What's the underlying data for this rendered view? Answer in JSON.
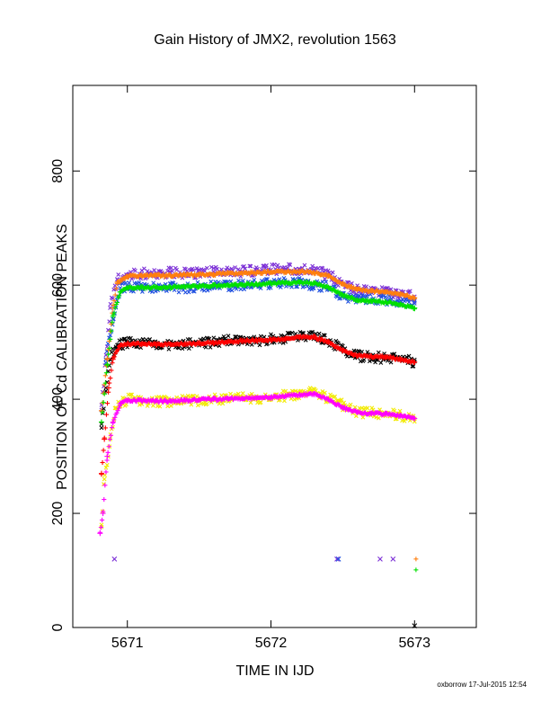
{
  "chart_data": {
    "type": "scatter",
    "title": "Gain History of JMX2, revolution 1563",
    "xlabel": "TIME IN IJD",
    "ylabel": "POSITION OF Cd CALIBRATION PEAKS",
    "xlim": [
      5670.62,
      5673.43
    ],
    "ylim": [
      0,
      950
    ],
    "x_ticks": [
      5671,
      5672,
      5673
    ],
    "y_ticks": [
      0,
      200,
      400,
      600,
      800
    ],
    "grid": false,
    "legend": "none",
    "series": [
      {
        "color": "#7b2fd6",
        "marker": "x",
        "x": [
          5670.82,
          5670.85,
          5670.88,
          5670.93,
          5671.0,
          5671.1,
          5671.2,
          5671.3,
          5671.4,
          5671.5,
          5671.6,
          5671.7,
          5671.8,
          5671.9,
          5672.0,
          5672.1,
          5672.2,
          5672.3,
          5672.4,
          5672.5,
          5672.6,
          5672.7,
          5672.8,
          5672.9,
          5673.0
        ],
        "y": [
          390,
          470,
          560,
          610,
          618,
          620,
          621,
          622,
          620,
          621,
          624,
          625,
          624,
          626,
          627,
          628,
          628,
          625,
          618,
          602,
          592,
          590,
          588,
          585,
          580
        ]
      },
      {
        "color": "#1f4fe0",
        "marker": "x",
        "x": [
          5670.85,
          5670.9,
          5670.95,
          5671.0,
          5671.2,
          5671.4,
          5671.6,
          5671.8,
          5672.0,
          5672.2,
          5672.4,
          5672.5,
          5672.6,
          5672.8,
          5673.0
        ],
        "y": [
          470,
          540,
          595,
          598,
          596,
          595,
          598,
          600,
          603,
          604,
          596,
          580,
          578,
          574,
          568
        ]
      },
      {
        "color": "#000000",
        "marker": "x",
        "x": [
          5670.82,
          5670.85,
          5670.88,
          5670.92,
          5671.0,
          5671.1,
          5671.2,
          5671.3,
          5671.4,
          5671.5,
          5671.6,
          5671.7,
          5671.8,
          5671.9,
          5672.0,
          5672.1,
          5672.2,
          5672.3,
          5672.4,
          5672.5,
          5672.6,
          5672.7,
          5672.8,
          5672.9,
          5673.0
        ],
        "y": [
          350,
          420,
          470,
          492,
          500,
          498,
          497,
          496,
          497,
          498,
          500,
          503,
          503,
          503,
          505,
          507,
          510,
          509,
          502,
          486,
          476,
          474,
          472,
          470,
          466
        ]
      },
      {
        "color": "#f2ea00",
        "marker": "x",
        "x": [
          5670.82,
          5670.84,
          5670.88,
          5670.92,
          5671.0,
          5671.1,
          5671.2,
          5671.3,
          5671.4,
          5671.5,
          5671.6,
          5671.7,
          5671.8,
          5671.9,
          5672.0,
          5672.1,
          5672.2,
          5672.3,
          5672.4,
          5672.5,
          5672.6,
          5672.7,
          5672.8,
          5672.9,
          5673.0
        ],
        "y": [
          180,
          260,
          330,
          385,
          400,
          398,
          396,
          396,
          397,
          398,
          400,
          402,
          403,
          402,
          404,
          406,
          410,
          412,
          402,
          390,
          378,
          376,
          374,
          372,
          366
        ]
      },
      {
        "color": "#ff7f0e",
        "marker": "+",
        "x": [
          5670.82,
          5670.86,
          5670.9,
          5670.93,
          5671.0,
          5671.1,
          5671.2,
          5671.3,
          5671.4,
          5671.5,
          5671.6,
          5671.7,
          5671.8,
          5671.9,
          5672.0,
          5672.1,
          5672.2,
          5672.3,
          5672.4,
          5672.5,
          5672.6,
          5672.7,
          5672.8,
          5672.9,
          5673.0
        ],
        "y": [
          380,
          470,
          560,
          605,
          615,
          617,
          617,
          617,
          618,
          618,
          619,
          621,
          621,
          622,
          623,
          623,
          624,
          622,
          616,
          602,
          592,
          590,
          588,
          584,
          578
        ]
      },
      {
        "color": "#00e000",
        "marker": "+",
        "x": [
          5670.82,
          5670.86,
          5670.9,
          5670.95,
          5671.0,
          5671.1,
          5671.2,
          5671.3,
          5671.4,
          5671.5,
          5671.6,
          5671.7,
          5671.8,
          5671.9,
          5672.0,
          5672.1,
          5672.2,
          5672.3,
          5672.4,
          5672.5,
          5672.6,
          5672.7,
          5672.8,
          5672.9,
          5673.0
        ],
        "y": [
          360,
          460,
          545,
          588,
          596,
          596,
          596,
          596,
          597,
          598,
          599,
          600,
          601,
          602,
          603,
          604,
          605,
          603,
          596,
          582,
          574,
          572,
          570,
          566,
          560
        ]
      },
      {
        "color": "#ff0000",
        "marker": "+",
        "x": [
          5670.82,
          5670.84,
          5670.87,
          5670.9,
          5670.95,
          5671.0,
          5671.1,
          5671.2,
          5671.3,
          5671.4,
          5671.5,
          5671.6,
          5671.7,
          5671.8,
          5671.9,
          5672.0,
          5672.1,
          5672.2,
          5672.3,
          5672.4,
          5672.5,
          5672.6,
          5672.7,
          5672.8,
          5672.9,
          5673.0
        ],
        "y": [
          270,
          330,
          420,
          470,
          494,
          497,
          497,
          496,
          496,
          497,
          498,
          499,
          501,
          502,
          503,
          504,
          506,
          509,
          509,
          500,
          485,
          476,
          475,
          474,
          470,
          465
        ]
      },
      {
        "color": "#ff00ff",
        "marker": "+",
        "x": [
          5670.81,
          5670.83,
          5670.86,
          5670.9,
          5670.95,
          5671.0,
          5671.1,
          5671.2,
          5671.3,
          5671.4,
          5671.5,
          5671.6,
          5671.7,
          5671.8,
          5671.9,
          5672.0,
          5672.1,
          5672.2,
          5672.3,
          5672.4,
          5672.5,
          5672.6,
          5672.7,
          5672.8,
          5672.9,
          5673.0
        ],
        "y": [
          165,
          200,
          300,
          360,
          392,
          398,
          398,
          397,
          397,
          398,
          399,
          400,
          401,
          401,
          402,
          403,
          406,
          408,
          409,
          400,
          385,
          377,
          375,
          374,
          371,
          366
        ]
      }
    ],
    "outliers": [
      {
        "color": "#7b2fd6",
        "marker": "x",
        "x": 5670.91,
        "y": 120
      },
      {
        "color": "#7b2fd6",
        "marker": "x",
        "x": 5672.46,
        "y": 120
      },
      {
        "color": "#1f4fe0",
        "marker": "x",
        "x": 5672.47,
        "y": 120
      },
      {
        "color": "#7b2fd6",
        "marker": "x",
        "x": 5672.76,
        "y": 120
      },
      {
        "color": "#7b2fd6",
        "marker": "x",
        "x": 5672.85,
        "y": 120
      },
      {
        "color": "#ff7f0e",
        "marker": "+",
        "x": 5673.01,
        "y": 120
      },
      {
        "color": "#00e000",
        "marker": "+",
        "x": 5673.01,
        "y": 101
      },
      {
        "color": "#000000",
        "marker": "x",
        "x": 5673.0,
        "y": 3
      }
    ]
  },
  "footer": "oxborrow 17-Jul-2015 12:54"
}
